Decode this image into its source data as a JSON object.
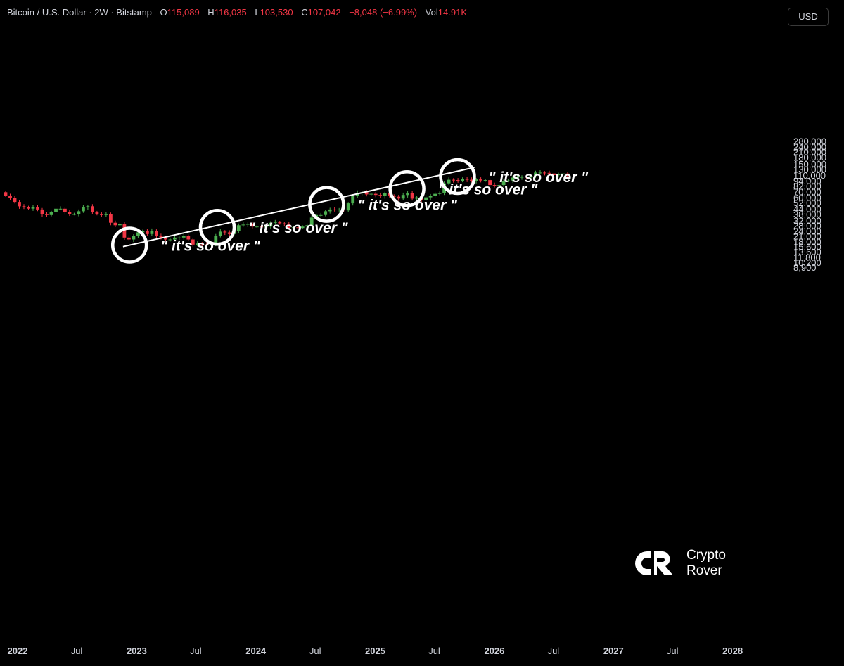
{
  "header": {
    "symbol": "Bitcoin / U.S. Dollar · 2W · Bitstamp",
    "open_label": "O",
    "open": "115,089",
    "high_label": "H",
    "high": "116,035",
    "low_label": "L",
    "low": "103,530",
    "close_label": "C",
    "close": "107,042",
    "change": "−8,048 (−6.99%)",
    "vol_label": "Vol",
    "vol": "14.91K"
  },
  "currency_button": "USD",
  "logo": {
    "line1": "Crypto",
    "line2": "Rover",
    "icon": "cr-logo-icon"
  },
  "colors": {
    "background": "#000000",
    "up": "#4caf50",
    "down": "#f23645",
    "text": "#d1d4dc",
    "trendline": "#ffffff"
  },
  "chart_data": {
    "type": "candlestick",
    "scale": "log",
    "grid": false,
    "y_ticks": [
      280000,
      240000,
      210000,
      180000,
      150000,
      130000,
      110000,
      94000,
      82000,
      70000,
      60000,
      52000,
      44000,
      38000,
      32000,
      28000,
      24000,
      21000,
      18000,
      15600,
      13600,
      11800,
      10200,
      8900
    ],
    "y_tick_labels": [
      "280,000",
      "240,000",
      "210,000",
      "180,000",
      "150,000",
      "130,000",
      "110,000",
      "94,000",
      "82,000",
      "70,000",
      "60,000",
      "52,000",
      "44,000",
      "38,000",
      "32,000",
      "28,000",
      "24,000",
      "21,000",
      "18,000",
      "15,600",
      "13,600",
      "11,800",
      "10,200",
      "8,900"
    ],
    "x_ticks": [
      {
        "label": "2022",
        "date": "2022-01-01",
        "major": true
      },
      {
        "label": "Jul",
        "date": "2022-07-01",
        "major": false
      },
      {
        "label": "2023",
        "date": "2023-01-01",
        "major": true
      },
      {
        "label": "Jul",
        "date": "2023-07-01",
        "major": false
      },
      {
        "label": "2024",
        "date": "2024-01-01",
        "major": true
      },
      {
        "label": "Jul",
        "date": "2024-07-01",
        "major": false
      },
      {
        "label": "2025",
        "date": "2025-01-01",
        "major": true
      },
      {
        "label": "Jul",
        "date": "2025-07-01",
        "major": false
      },
      {
        "label": "2026",
        "date": "2026-01-01",
        "major": true
      },
      {
        "label": "Jul",
        "date": "2026-07-01",
        "major": false
      },
      {
        "label": "2027",
        "date": "2027-01-01",
        "major": true
      },
      {
        "label": "Jul",
        "date": "2027-07-01",
        "major": false
      },
      {
        "label": "2028",
        "date": "2028-01-01",
        "major": true
      }
    ],
    "candles_close": [
      63000,
      59000,
      53000,
      47000,
      46000,
      44000,
      46000,
      43000,
      38000,
      37000,
      40000,
      44000,
      44000,
      40000,
      38000,
      38000,
      41000,
      46000,
      47000,
      40000,
      38000,
      37000,
      38000,
      30000,
      28000,
      29000,
      20000,
      19000,
      21000,
      23000,
      24000,
      22000,
      24000,
      21000,
      20000,
      19000,
      19000,
      20000,
      20000,
      21000,
      19000,
      16500,
      17000,
      16600,
      16500,
      16800,
      21000,
      23500,
      23000,
      22000,
      24000,
      28000,
      28500,
      29000,
      27000,
      27000,
      26500,
      27000,
      30000,
      30500,
      29500,
      29000,
      26000,
      26500,
      26000,
      27000,
      28000,
      34500,
      37000,
      37000,
      41000,
      43000,
      42500,
      43000,
      42000,
      51000,
      62000,
      68000,
      69000,
      65000,
      66000,
      64000,
      62000,
      67000,
      63000,
      61000,
      58000,
      64000,
      68000,
      58000,
      60000,
      56000,
      60000,
      63000,
      66000,
      68000,
      88000,
      97000,
      96000,
      94000,
      100000,
      97000,
      94000,
      98000,
      95000,
      96000,
      84000,
      82000,
      84000,
      94000,
      95000,
      103000,
      104000,
      105000,
      104000,
      108000,
      118000,
      118000,
      117000,
      115000,
      110000,
      112000,
      115000,
      107000
    ],
    "trendline": {
      "from": {
        "date": "2022-11-20",
        "price": 15600
      },
      "to": {
        "date": "2025-11-01",
        "price": 136000
      }
    },
    "annotations": [
      {
        "text": "\" it's so over \"",
        "date": "2022-12-10",
        "price": 16300
      },
      {
        "text": "\" it's so over \"",
        "date": "2023-09-05",
        "price": 26500
      },
      {
        "text": "\" it's so over \"",
        "date": "2024-08-05",
        "price": 49500
      },
      {
        "text": "\" it's so over \"",
        "date": "2025-04-08",
        "price": 76000
      },
      {
        "text": "\" it's so over \"",
        "date": "2025-09-10",
        "price": 106000
      }
    ]
  }
}
